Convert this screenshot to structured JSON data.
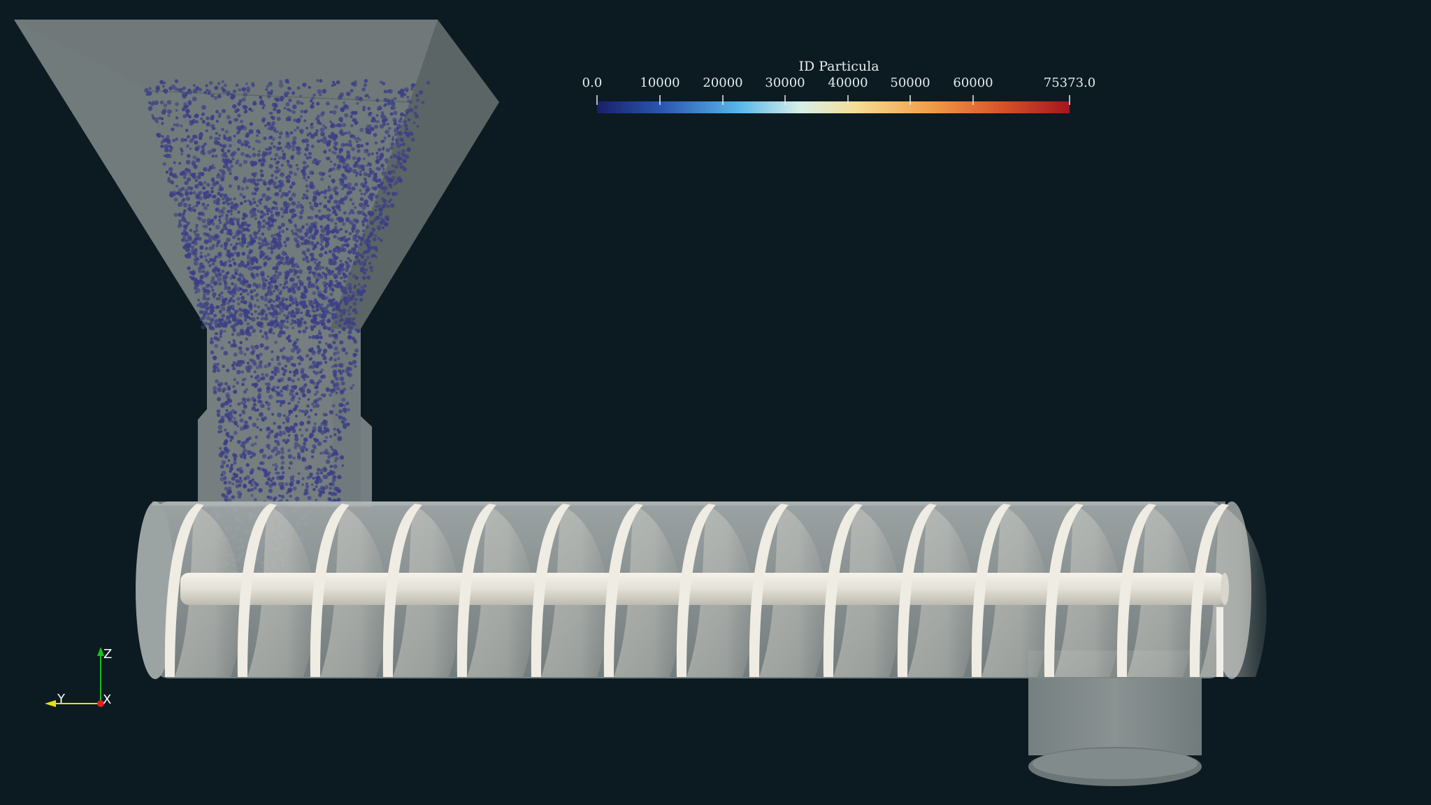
{
  "viewer": {
    "background": "#0b1b21"
  },
  "colorbar": {
    "title": "ID Particula",
    "ticks": [
      "0.0",
      "10000",
      "20000",
      "30000",
      "40000",
      "50000",
      "60000",
      "75373.0"
    ],
    "colormap": "cool-to-warm (extended)",
    "colors": [
      "#1a1f6b",
      "#2c5cb0",
      "#58b6e8",
      "#e5f1e6",
      "#f7d48a",
      "#ee9b46",
      "#d9562a",
      "#a4161d"
    ]
  },
  "orientation_axes": {
    "z_label": "Z",
    "y_label": "Y",
    "x_label": "X",
    "z_color": "#18c21e",
    "y_color": "#e6de1e",
    "x_color": "#e51d1d"
  },
  "particles": {
    "color": "#3a3f86"
  },
  "geometry": {
    "hopper_color": "#8f9696",
    "casing_color": "#a6acab",
    "screw_color": "#eceae0"
  }
}
